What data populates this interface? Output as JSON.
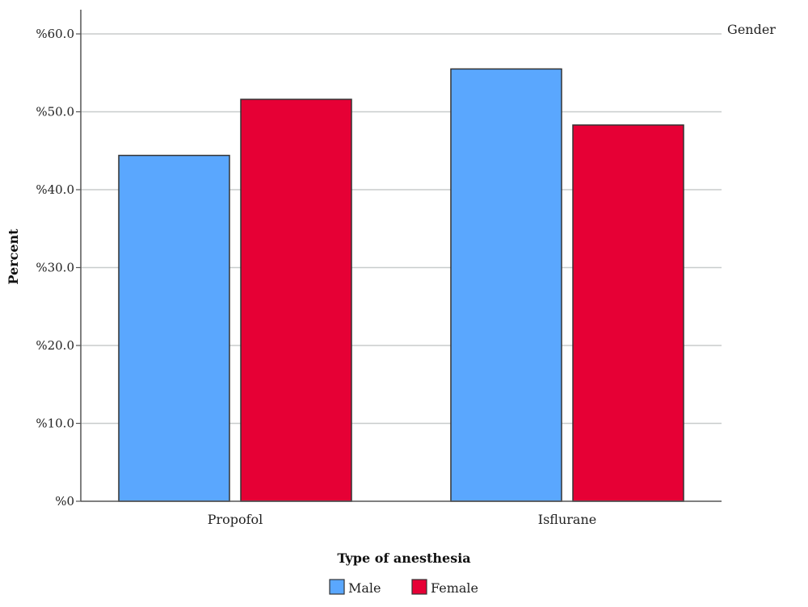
{
  "chart_data": {
    "type": "bar",
    "categories": [
      "Propofol",
      "Isflurane"
    ],
    "series": [
      {
        "name": "Male",
        "values": [
          44.4,
          55.5
        ],
        "color": "#5aa7fe"
      },
      {
        "name": "Female",
        "values": [
          51.6,
          48.3
        ],
        "color": "#e60035"
      }
    ],
    "xlabel": "Type of anesthesia",
    "ylabel": "Percent",
    "ylim": [
      0,
      60
    ],
    "yticks": [
      0,
      10,
      20,
      30,
      40,
      50,
      60
    ],
    "ytick_labels": [
      "%0",
      "%10.0",
      "%20.0",
      "%30.0",
      "%40.0",
      "%50.0",
      "%60.0"
    ],
    "legend_title": "Gender",
    "legend_placement": "bottom",
    "grid": true,
    "colors": {
      "gridline": "#c8cccc",
      "axis": "#555555",
      "bar_border": "#333333"
    }
  }
}
